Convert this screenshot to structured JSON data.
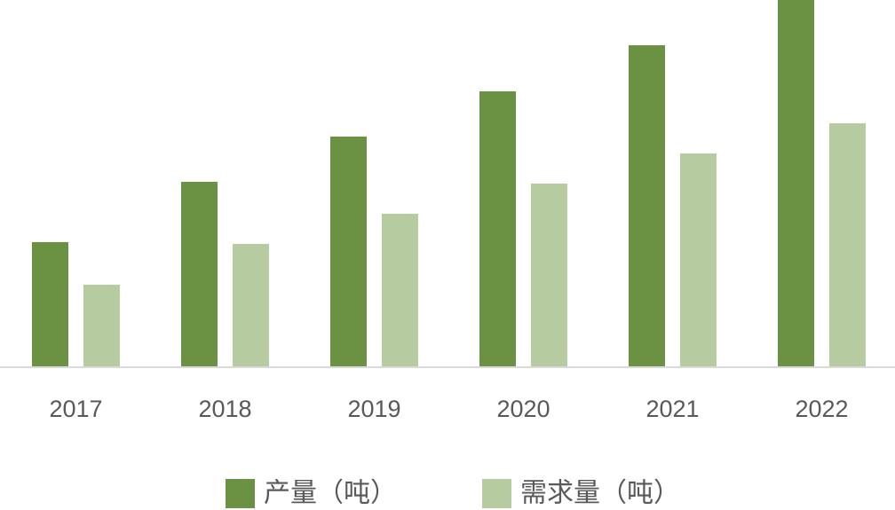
{
  "chart_data": {
    "type": "bar",
    "categories": [
      "2017",
      "2018",
      "2019",
      "2020",
      "2021",
      "2022"
    ],
    "series": [
      {
        "name": "产量（吨）",
        "color": "#6b9242",
        "values": [
          140,
          208,
          259,
          310,
          362,
          413
        ]
      },
      {
        "name": "需求量（吨）",
        "color": "#b7cba0",
        "values": [
          92,
          138,
          172,
          206,
          240,
          274
        ]
      }
    ]
  }
}
